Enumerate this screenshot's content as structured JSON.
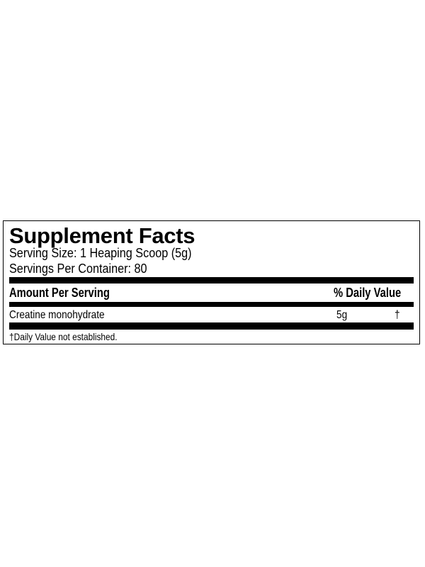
{
  "label": {
    "title": "Supplement Facts",
    "serving_size": "Serving Size: 1 Heaping Scoop (5g)",
    "servings_per_container": "Servings Per Container: 80",
    "header": {
      "amount": "Amount Per Serving",
      "daily_value": "% Daily Value"
    },
    "rows": [
      {
        "ingredient": "Creatine monohydrate",
        "amount": "5g",
        "daily_value": "†"
      }
    ],
    "footnote": "†Daily Value not established."
  }
}
